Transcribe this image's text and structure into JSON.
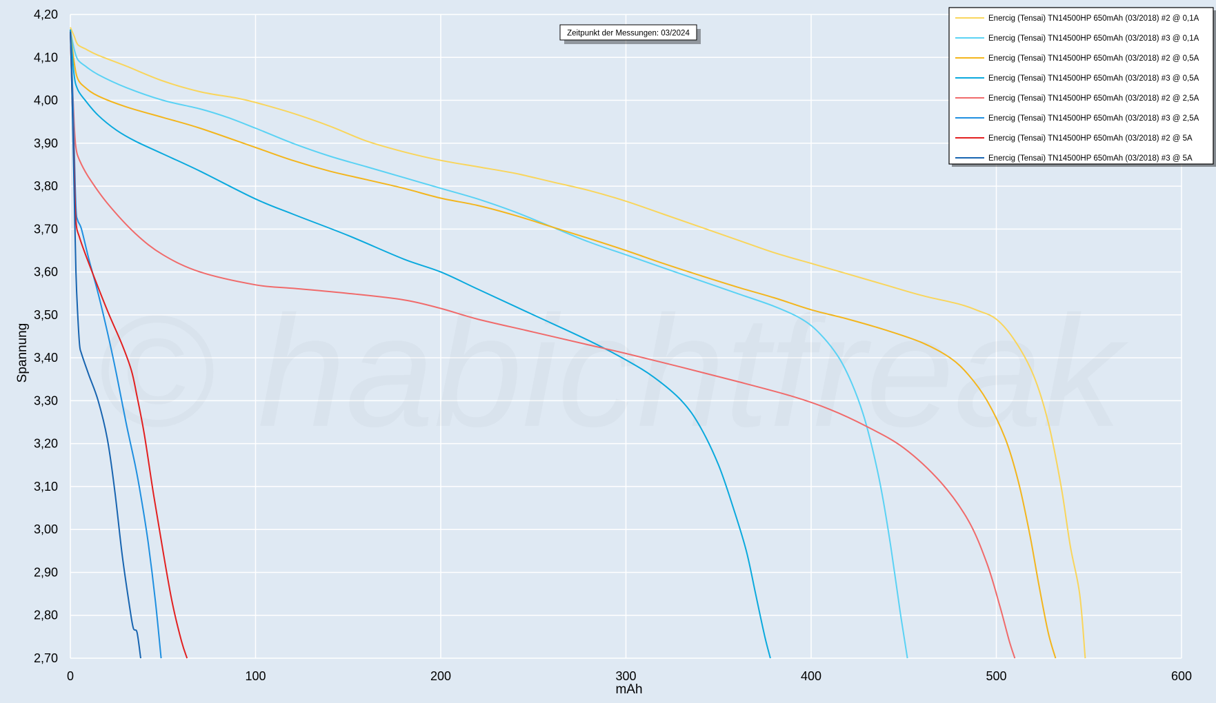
{
  "watermark": "© habichtfreak",
  "annotation": "Zeitpunkt der Messungen: 03/2024",
  "colors": {
    "background": "#dfe9f3",
    "grid": "#ffffff"
  },
  "chart_data": {
    "type": "line",
    "title": "",
    "xlabel": "mAh",
    "ylabel": "Spannung",
    "xlim": [
      0,
      600
    ],
    "ylim": [
      2.7,
      4.2
    ],
    "grid": true,
    "legend_position": "top-right",
    "x_ticks": [
      0,
      100,
      200,
      300,
      400,
      500,
      600
    ],
    "x_tick_labels": [
      "0",
      "100",
      "200",
      "300",
      "400",
      "500",
      "600"
    ],
    "y_ticks": [
      2.7,
      2.8,
      2.9,
      3.0,
      3.1,
      3.2,
      3.3,
      3.4,
      3.5,
      3.6,
      3.7,
      3.8,
      3.9,
      4.0,
      4.1,
      4.2
    ],
    "y_tick_labels": [
      "2,70",
      "2,80",
      "2,90",
      "3,00",
      "3,10",
      "3,20",
      "3,30",
      "3,40",
      "3,50",
      "3,60",
      "3,70",
      "3,80",
      "3,90",
      "4,00",
      "4,10",
      "4,20"
    ],
    "series": [
      {
        "name": "Enercig (Tensai) TN14500HP 650mAh (03/2018) #2 @ 0,1A",
        "color": "#f9d55b",
        "x": [
          0,
          2,
          4,
          8,
          15,
          30,
          50,
          70,
          90,
          100,
          120,
          140,
          160,
          180,
          200,
          220,
          240,
          260,
          280,
          300,
          320,
          340,
          360,
          380,
          400,
          420,
          440,
          460,
          480,
          490,
          500,
          510,
          520,
          528,
          535,
          540,
          545,
          548
        ],
        "y": [
          4.17,
          4.15,
          4.13,
          4.12,
          4.105,
          4.08,
          4.045,
          4.02,
          4.005,
          3.995,
          3.97,
          3.94,
          3.905,
          3.88,
          3.86,
          3.845,
          3.83,
          3.81,
          3.79,
          3.765,
          3.735,
          3.705,
          3.675,
          3.645,
          3.62,
          3.595,
          3.57,
          3.545,
          3.525,
          3.51,
          3.49,
          3.44,
          3.36,
          3.25,
          3.1,
          2.96,
          2.85,
          2.7
        ]
      },
      {
        "name": "Enercig (Tensai) TN14500HP 650mAh (03/2018) #3 @ 0,1A",
        "color": "#5ad2f4",
        "x": [
          0,
          2,
          4,
          8,
          15,
          30,
          50,
          70,
          85,
          100,
          120,
          140,
          160,
          180,
          200,
          220,
          240,
          260,
          280,
          300,
          320,
          340,
          360,
          380,
          395,
          405,
          415,
          422,
          428,
          433,
          438,
          443,
          448,
          452
        ],
        "y": [
          4.165,
          4.12,
          4.095,
          4.08,
          4.06,
          4.03,
          4.0,
          3.98,
          3.96,
          3.935,
          3.9,
          3.87,
          3.845,
          3.82,
          3.795,
          3.77,
          3.74,
          3.705,
          3.67,
          3.64,
          3.61,
          3.58,
          3.55,
          3.52,
          3.49,
          3.455,
          3.4,
          3.34,
          3.27,
          3.19,
          3.09,
          2.96,
          2.81,
          2.7
        ]
      },
      {
        "name": "Enercig (Tensai) TN14500HP 650mAh (03/2018) #2 @ 0,5A",
        "color": "#f3b51c",
        "x": [
          0,
          2,
          4,
          8,
          15,
          30,
          50,
          70,
          100,
          120,
          140,
          160,
          180,
          200,
          220,
          240,
          260,
          280,
          300,
          320,
          340,
          360,
          380,
          400,
          420,
          440,
          460,
          475,
          485,
          495,
          505,
          512,
          518,
          523,
          528,
          532
        ],
        "y": [
          4.165,
          4.09,
          4.05,
          4.03,
          4.01,
          3.985,
          3.96,
          3.935,
          3.89,
          3.86,
          3.835,
          3.815,
          3.795,
          3.772,
          3.755,
          3.732,
          3.705,
          3.678,
          3.65,
          3.62,
          3.592,
          3.565,
          3.54,
          3.512,
          3.49,
          3.465,
          3.435,
          3.4,
          3.36,
          3.3,
          3.21,
          3.11,
          2.99,
          2.87,
          2.76,
          2.7
        ]
      },
      {
        "name": "Enercig (Tensai) TN14500HP 650mAh (03/2018) #3 @ 0,5A",
        "color": "#0aa9dd",
        "x": [
          0,
          2,
          4,
          8,
          15,
          25,
          35,
          50,
          70,
          100,
          120,
          150,
          180,
          200,
          220,
          250,
          280,
          300,
          315,
          330,
          340,
          350,
          358,
          365,
          370,
          375,
          378
        ],
        "y": [
          4.165,
          4.06,
          4.025,
          4.0,
          3.965,
          3.93,
          3.905,
          3.875,
          3.835,
          3.77,
          3.735,
          3.685,
          3.63,
          3.6,
          3.56,
          3.5,
          3.44,
          3.395,
          3.355,
          3.3,
          3.24,
          3.15,
          3.05,
          2.95,
          2.85,
          2.75,
          2.7
        ]
      },
      {
        "name": "Enercig (Tensai) TN14500HP 650mAh (03/2018) #2 @ 2,5A",
        "color": "#f06a6a",
        "x": [
          0,
          1,
          2,
          3,
          5,
          10,
          20,
          35,
          50,
          70,
          100,
          120,
          150,
          180,
          200,
          220,
          250,
          280,
          300,
          330,
          360,
          390,
          410,
          430,
          450,
          470,
          485,
          495,
          502,
          507,
          510
        ],
        "y": [
          4.16,
          4.05,
          3.95,
          3.89,
          3.86,
          3.82,
          3.76,
          3.69,
          3.64,
          3.6,
          3.57,
          3.562,
          3.55,
          3.535,
          3.515,
          3.49,
          3.46,
          3.43,
          3.41,
          3.378,
          3.345,
          3.31,
          3.28,
          3.24,
          3.19,
          3.11,
          3.02,
          2.92,
          2.82,
          2.74,
          2.7
        ]
      },
      {
        "name": "Enercig (Tensai) TN14500HP 650mAh (03/2018) #3 @ 2,5A",
        "color": "#1e8fe0",
        "x": [
          0,
          1,
          2,
          3,
          4,
          6,
          10,
          15,
          20,
          25,
          30,
          35,
          38,
          42,
          46,
          49
        ],
        "y": [
          4.16,
          4.05,
          3.9,
          3.75,
          3.72,
          3.7,
          3.63,
          3.55,
          3.46,
          3.36,
          3.25,
          3.15,
          3.08,
          2.97,
          2.83,
          2.7
        ]
      },
      {
        "name": "Enercig (Tensai) TN14500HP 650mAh (03/2018) #2 @ 5A",
        "color": "#e21f1f",
        "x": [
          0,
          1,
          2,
          3,
          5,
          10,
          20,
          28,
          33,
          36,
          40,
          45,
          50,
          55,
          60,
          63
        ],
        "y": [
          4.16,
          4.0,
          3.85,
          3.72,
          3.68,
          3.62,
          3.51,
          3.43,
          3.37,
          3.31,
          3.22,
          3.08,
          2.95,
          2.83,
          2.74,
          2.7
        ]
      },
      {
        "name": "Enercig (Tensai) TN14500HP 650mAh (03/2018) #3 @ 5A",
        "color": "#1764b0",
        "x": [
          0,
          1,
          2,
          3,
          4,
          5,
          6,
          10,
          15,
          20,
          24,
          28,
          32,
          34,
          36,
          38
        ],
        "y": [
          4.16,
          4.0,
          3.8,
          3.6,
          3.5,
          3.43,
          3.41,
          3.36,
          3.3,
          3.21,
          3.09,
          2.94,
          2.82,
          2.77,
          2.76,
          2.7
        ]
      }
    ]
  }
}
